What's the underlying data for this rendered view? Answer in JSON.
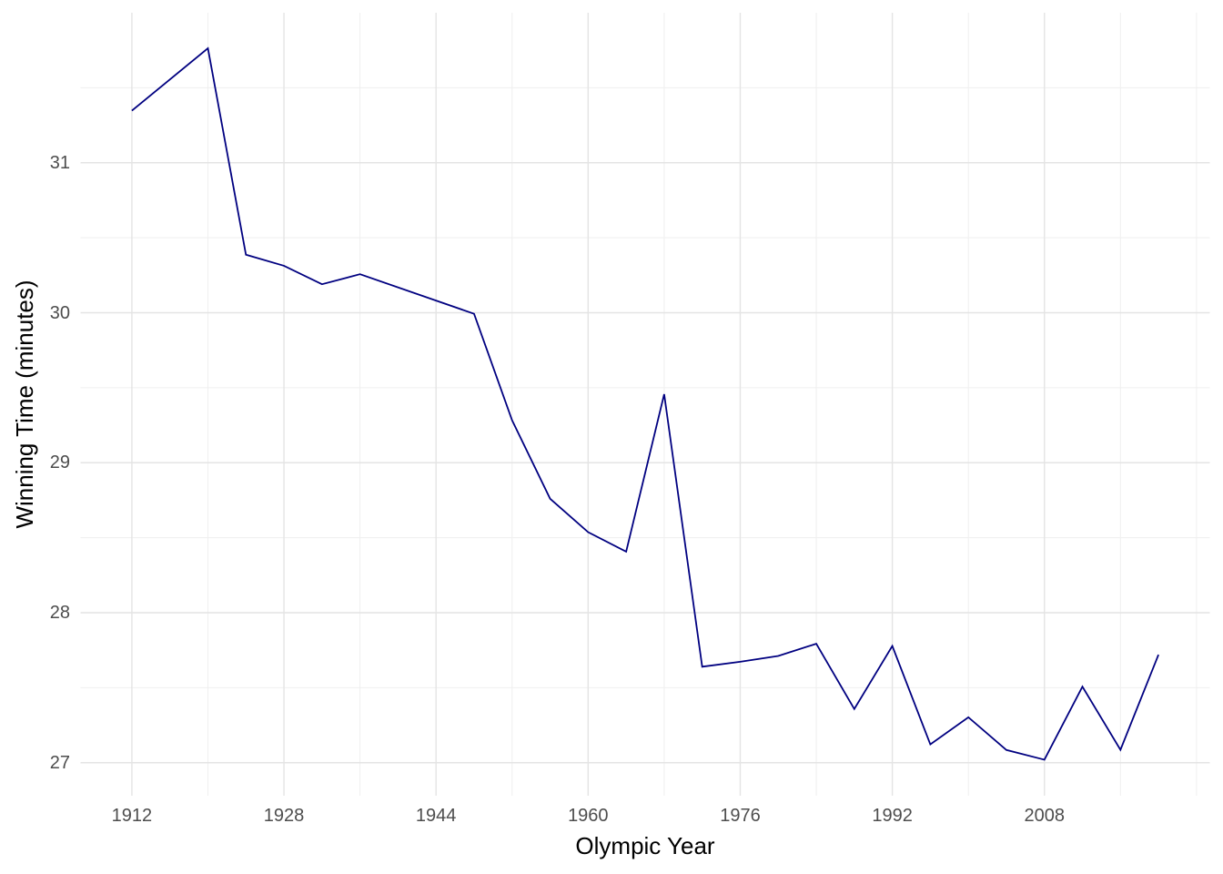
{
  "chart_data": {
    "type": "line",
    "title": "",
    "xlabel": "Olympic Year",
    "ylabel": "Winning Time (minutes)",
    "legend": "none",
    "grid": "major+minor",
    "x_range": [
      1906.6,
      2025.4
    ],
    "y_range": [
      26.78,
      32.0
    ],
    "x_major_ticks": [
      1912,
      1928,
      1944,
      1960,
      1976,
      1992,
      2008
    ],
    "x_tick_labels": [
      "1912",
      "1928",
      "1944",
      "1960",
      "1976",
      "1992",
      "2008"
    ],
    "x_minor_ticks": [
      1920,
      1936,
      1952,
      1968,
      1984,
      2000,
      2016,
      2024
    ],
    "y_major_ticks": [
      27,
      28,
      29,
      30,
      31
    ],
    "y_tick_labels": [
      "27",
      "28",
      "29",
      "30",
      "31"
    ],
    "y_minor_ticks": [
      27.5,
      28.5,
      29.5,
      30.5,
      31.5
    ],
    "colors": {
      "line": "#000080",
      "grid_major": "#e4e4e4",
      "grid_minor": "#efefef",
      "tick_text": "#4d4d4d",
      "title_text": "#000000",
      "background": "#ffffff"
    },
    "series": [
      {
        "name": "Winning time",
        "color": "#000080",
        "x": [
          1912,
          1920,
          1924,
          1928,
          1932,
          1936,
          1948,
          1952,
          1956,
          1960,
          1964,
          1968,
          1972,
          1976,
          1980,
          1984,
          1988,
          1992,
          1996,
          2000,
          2004,
          2008,
          2012,
          2016,
          2020
        ],
        "y": [
          31.347,
          31.763,
          30.387,
          30.313,
          30.19,
          30.257,
          29.993,
          29.283,
          28.76,
          28.537,
          28.407,
          29.457,
          27.64,
          27.673,
          27.712,
          27.793,
          27.358,
          27.778,
          27.122,
          27.303,
          27.085,
          27.02,
          27.507,
          27.086,
          27.72
        ]
      }
    ]
  }
}
